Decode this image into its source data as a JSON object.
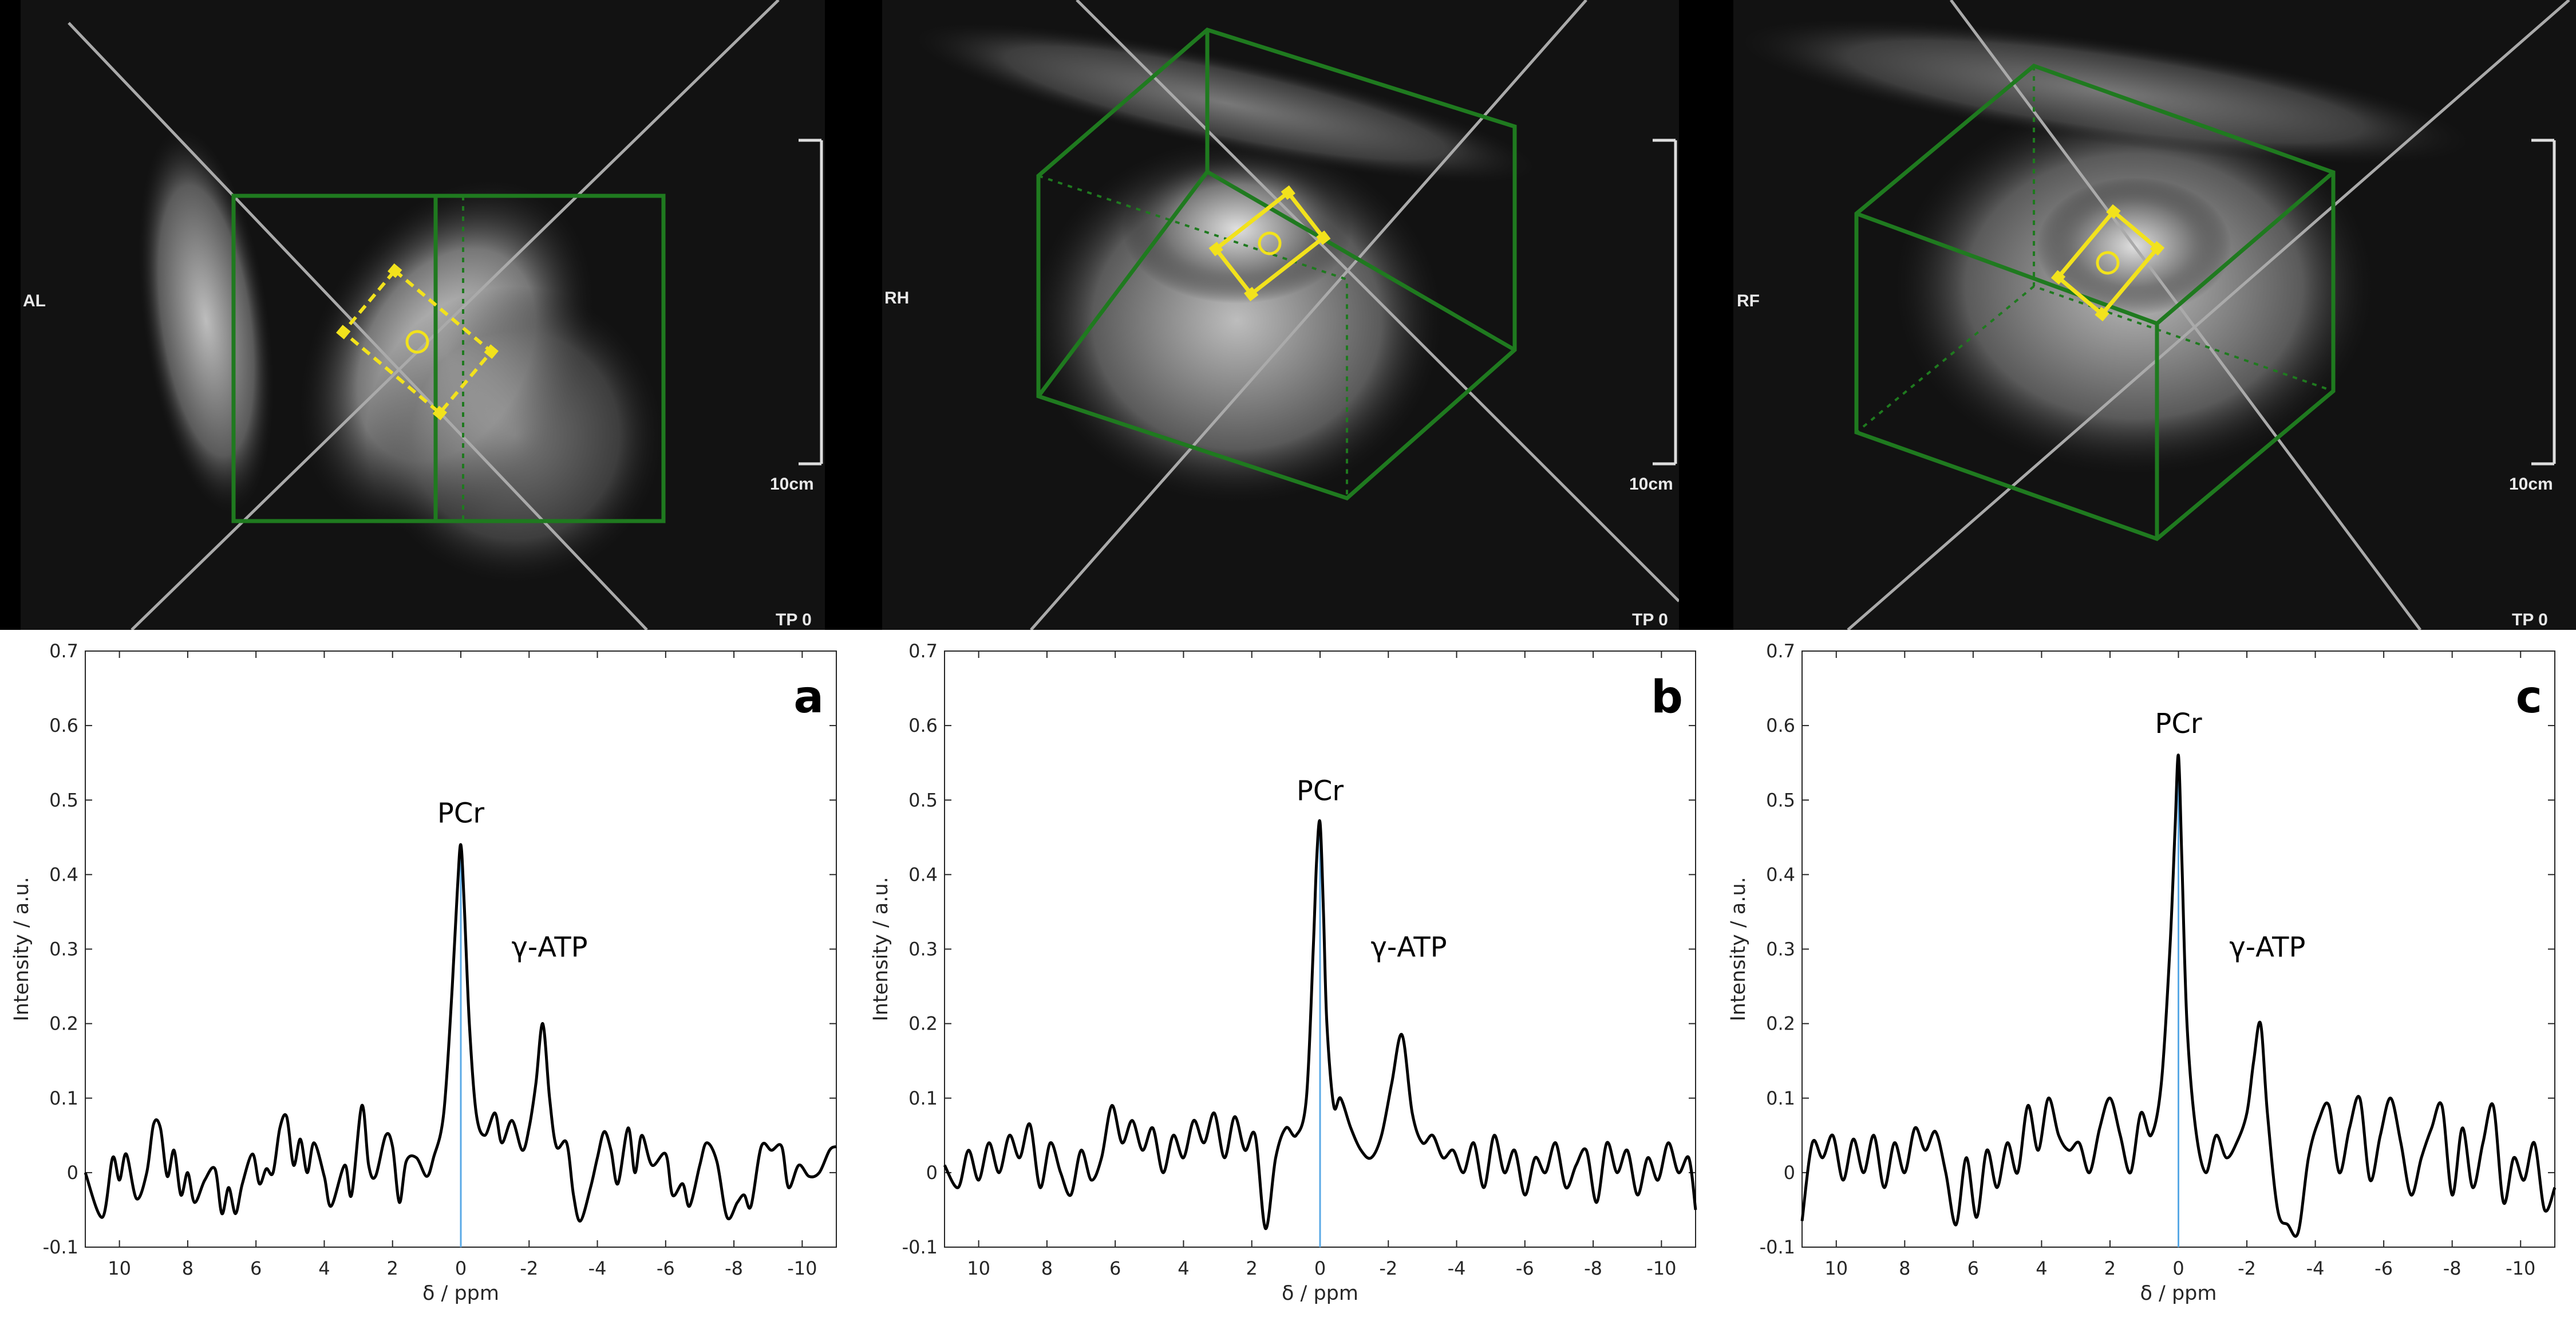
{
  "mri_panels": [
    {
      "orientation_label": "AL",
      "scale_label": "10cm",
      "timepoint_label": "TP 0"
    },
    {
      "orientation_label": "RH",
      "scale_label": "10cm",
      "timepoint_label": "TP 0"
    },
    {
      "orientation_label": "RF",
      "scale_label": "10cm",
      "timepoint_label": "TP 0"
    }
  ],
  "colors": {
    "spectrum": "#000000",
    "reference_line": "#5aa9e6",
    "voxel_box": "#1f7a1f",
    "voi_marker": "#f2e21c"
  },
  "chart_data": [
    {
      "type": "line",
      "panel_label": "a",
      "xlabel": "δ / ppm",
      "ylabel": "Intensity / a.u.",
      "xlim": [
        11,
        -11
      ],
      "ylim": [
        -0.1,
        0.7
      ],
      "grid": false,
      "xticks": [
        10,
        8,
        6,
        4,
        2,
        0,
        -2,
        -4,
        -6,
        -8,
        -10
      ],
      "xtick_labels": [
        "10",
        "8",
        "6",
        "4",
        "2",
        "0",
        "-2",
        "-4",
        "-6",
        "-8",
        "-10"
      ],
      "yticks": [
        -0.1,
        0,
        0.1,
        0.2,
        0.3,
        0.4,
        0.5,
        0.6,
        0.7
      ],
      "ytick_labels": [
        "-0.1",
        "0",
        "0.1",
        "0.2",
        "0.3",
        "0.4",
        "0.5",
        "0.6",
        "0.7"
      ],
      "annotations": [
        {
          "text": "PCr",
          "x": 0,
          "y": 0.47
        },
        {
          "text": "γ-ATP",
          "x": -2.6,
          "y": 0.29
        }
      ],
      "reference_line_x": 0,
      "x": [
        11,
        10.5,
        10.2,
        10,
        9.8,
        9.5,
        9.2,
        9,
        8.8,
        8.6,
        8.4,
        8.2,
        8,
        7.8,
        7.5,
        7.2,
        7,
        6.8,
        6.6,
        6.4,
        6.1,
        5.9,
        5.7,
        5.5,
        5.3,
        5.1,
        4.9,
        4.7,
        4.5,
        4.3,
        4,
        3.8,
        3.4,
        3.2,
        2.9,
        2.7,
        2.5,
        2.2,
        2,
        1.8,
        1.6,
        1.3,
        1,
        0.8,
        0.5,
        0.25,
        0.1,
        0,
        -0.1,
        -0.25,
        -0.45,
        -0.7,
        -1,
        -1.2,
        -1.5,
        -1.8,
        -2,
        -2.2,
        -2.4,
        -2.6,
        -2.8,
        -3.1,
        -3.3,
        -3.5,
        -3.8,
        -4,
        -4.2,
        -4.4,
        -4.6,
        -4.9,
        -5.1,
        -5.3,
        -5.6,
        -6,
        -6.2,
        -6.5,
        -6.7,
        -7,
        -7.2,
        -7.5,
        -7.8,
        -8.1,
        -8.3,
        -8.5,
        -8.8,
        -9.1,
        -9.4,
        -9.6,
        -9.9,
        -10.2,
        -10.5,
        -10.8,
        -11
      ],
      "y": [
        0,
        -0.06,
        0.02,
        -0.01,
        0.025,
        -0.035,
        0,
        0.065,
        0.06,
        -0.005,
        0.03,
        -0.03,
        0,
        -0.04,
        -0.01,
        0.005,
        -0.055,
        -0.02,
        -0.055,
        -0.015,
        0.025,
        -0.015,
        0.005,
        0,
        0.06,
        0.075,
        0.01,
        0.045,
        0,
        0.04,
        -0.005,
        -0.045,
        0.01,
        -0.03,
        0.09,
        0.01,
        -0.005,
        0.05,
        0.035,
        -0.04,
        0.015,
        0.02,
        -0.005,
        0.02,
        0.08,
        0.25,
        0.38,
        0.44,
        0.36,
        0.2,
        0.08,
        0.05,
        0.08,
        0.04,
        0.07,
        0.03,
        0.06,
        0.12,
        0.2,
        0.1,
        0.035,
        0.04,
        -0.03,
        -0.065,
        -0.02,
        0.02,
        0.055,
        0.03,
        -0.015,
        0.06,
        0,
        0.05,
        0.01,
        0.025,
        -0.03,
        -0.015,
        -0.045,
        0.01,
        0.04,
        0.015,
        -0.06,
        -0.04,
        -0.03,
        -0.045,
        0.035,
        0.03,
        0.035,
        -0.02,
        0.01,
        -0.005,
        0,
        0.03,
        0.035
      ]
    },
    {
      "type": "line",
      "panel_label": "b",
      "xlabel": "δ / ppm",
      "ylabel": "Intensity / a.u.",
      "xlim": [
        11,
        -11
      ],
      "ylim": [
        -0.1,
        0.7
      ],
      "grid": false,
      "xticks": [
        10,
        8,
        6,
        4,
        2,
        0,
        -2,
        -4,
        -6,
        -8,
        -10
      ],
      "xtick_labels": [
        "10",
        "8",
        "6",
        "4",
        "2",
        "0",
        "-2",
        "-4",
        "-6",
        "-8",
        "-10"
      ],
      "yticks": [
        -0.1,
        0,
        0.1,
        0.2,
        0.3,
        0.4,
        0.5,
        0.6,
        0.7
      ],
      "ytick_labels": [
        "-0.1",
        "0",
        "0.1",
        "0.2",
        "0.3",
        "0.4",
        "0.5",
        "0.6",
        "0.7"
      ],
      "annotations": [
        {
          "text": "PCr",
          "x": 0,
          "y": 0.5
        },
        {
          "text": "γ-ATP",
          "x": -2.6,
          "y": 0.29
        }
      ],
      "reference_line_x": 0,
      "x": [
        11,
        10.6,
        10.3,
        10,
        9.7,
        9.4,
        9.1,
        8.8,
        8.5,
        8.2,
        7.9,
        7.6,
        7.3,
        7,
        6.7,
        6.4,
        6.1,
        5.8,
        5.5,
        5.2,
        4.9,
        4.6,
        4.3,
        4,
        3.7,
        3.4,
        3.1,
        2.8,
        2.5,
        2.2,
        1.9,
        1.6,
        1.3,
        1,
        0.7,
        0.4,
        0.2,
        0.1,
        0,
        -0.1,
        -0.2,
        -0.4,
        -0.6,
        -0.9,
        -1.2,
        -1.5,
        -1.8,
        -2.1,
        -2.4,
        -2.7,
        -3,
        -3.3,
        -3.6,
        -3.9,
        -4.2,
        -4.5,
        -4.8,
        -5.1,
        -5.4,
        -5.7,
        -6,
        -6.3,
        -6.6,
        -6.9,
        -7.2,
        -7.5,
        -7.8,
        -8.1,
        -8.4,
        -8.7,
        -9,
        -9.3,
        -9.6,
        -9.9,
        -10.2,
        -10.5,
        -10.8,
        -11
      ],
      "y": [
        0.01,
        -0.02,
        0.03,
        -0.01,
        0.04,
        0.0,
        0.05,
        0.02,
        0.065,
        -0.02,
        0.04,
        0.0,
        -0.03,
        0.03,
        -0.01,
        0.02,
        0.09,
        0.04,
        0.07,
        0.03,
        0.06,
        0.0,
        0.05,
        0.02,
        0.07,
        0.04,
        0.08,
        0.02,
        0.075,
        0.03,
        0.05,
        -0.075,
        0.02,
        0.06,
        0.05,
        0.1,
        0.3,
        0.42,
        0.47,
        0.35,
        0.2,
        0.09,
        0.1,
        0.06,
        0.03,
        0.02,
        0.05,
        0.12,
        0.185,
        0.08,
        0.04,
        0.05,
        0.02,
        0.03,
        0.0,
        0.04,
        -0.02,
        0.05,
        0.0,
        0.03,
        -0.03,
        0.02,
        0.0,
        0.04,
        -0.02,
        0.01,
        0.03,
        -0.04,
        0.04,
        0.0,
        0.03,
        -0.03,
        0.02,
        -0.01,
        0.04,
        0.0,
        0.02,
        -0.05
      ]
    },
    {
      "type": "line",
      "panel_label": "c",
      "xlabel": "δ / ppm",
      "ylabel": "Intensity / a.u.",
      "xlim": [
        11,
        -11
      ],
      "ylim": [
        -0.1,
        0.7
      ],
      "grid": false,
      "xticks": [
        10,
        8,
        6,
        4,
        2,
        0,
        -2,
        -4,
        -6,
        -8,
        -10
      ],
      "xtick_labels": [
        "10",
        "8",
        "6",
        "4",
        "2",
        "0",
        "-2",
        "-4",
        "-6",
        "-8",
        "-10"
      ],
      "yticks": [
        -0.1,
        0,
        0.1,
        0.2,
        0.3,
        0.4,
        0.5,
        0.6,
        0.7
      ],
      "ytick_labels": [
        "-0.1",
        "0",
        "0.1",
        "0.2",
        "0.3",
        "0.4",
        "0.5",
        "0.6",
        "0.7"
      ],
      "annotations": [
        {
          "text": "PCr",
          "x": 0,
          "y": 0.59
        },
        {
          "text": "γ-ATP",
          "x": -2.6,
          "y": 0.29
        }
      ],
      "reference_line_x": 0,
      "x": [
        11,
        10.7,
        10.4,
        10.1,
        9.8,
        9.5,
        9.2,
        8.9,
        8.6,
        8.3,
        8,
        7.7,
        7.4,
        7.1,
        6.8,
        6.5,
        6.2,
        5.9,
        5.6,
        5.3,
        5,
        4.7,
        4.4,
        4.1,
        3.8,
        3.5,
        3.2,
        2.9,
        2.6,
        2.3,
        2,
        1.7,
        1.4,
        1.1,
        0.8,
        0.5,
        0.25,
        0.1,
        0,
        -0.1,
        -0.25,
        -0.5,
        -0.8,
        -1.1,
        -1.4,
        -1.7,
        -2,
        -2.2,
        -2.4,
        -2.6,
        -2.9,
        -3.2,
        -3.5,
        -3.8,
        -4.1,
        -4.4,
        -4.7,
        -5,
        -5.3,
        -5.6,
        -5.9,
        -6.2,
        -6.5,
        -6.8,
        -7.1,
        -7.4,
        -7.7,
        -8,
        -8.3,
        -8.6,
        -8.9,
        -9.2,
        -9.5,
        -9.8,
        -10.1,
        -10.4,
        -10.7,
        -11
      ],
      "y": [
        -0.065,
        0.04,
        0.02,
        0.05,
        -0.01,
        0.045,
        0.0,
        0.05,
        -0.02,
        0.04,
        0.0,
        0.06,
        0.03,
        0.055,
        0.0,
        -0.07,
        0.02,
        -0.06,
        0.03,
        -0.02,
        0.04,
        0.0,
        0.09,
        0.03,
        0.1,
        0.05,
        0.03,
        0.04,
        0.0,
        0.06,
        0.1,
        0.05,
        0.0,
        0.08,
        0.05,
        0.12,
        0.3,
        0.46,
        0.56,
        0.42,
        0.2,
        0.06,
        0.0,
        0.05,
        0.02,
        0.04,
        0.08,
        0.15,
        0.2,
        0.08,
        -0.05,
        -0.07,
        -0.08,
        0.02,
        0.07,
        0.09,
        0.0,
        0.06,
        0.1,
        -0.01,
        0.05,
        0.1,
        0.04,
        -0.03,
        0.02,
        0.06,
        0.09,
        -0.03,
        0.06,
        -0.02,
        0.04,
        0.09,
        -0.04,
        0.02,
        -0.01,
        0.04,
        -0.05,
        -0.02
      ]
    }
  ]
}
